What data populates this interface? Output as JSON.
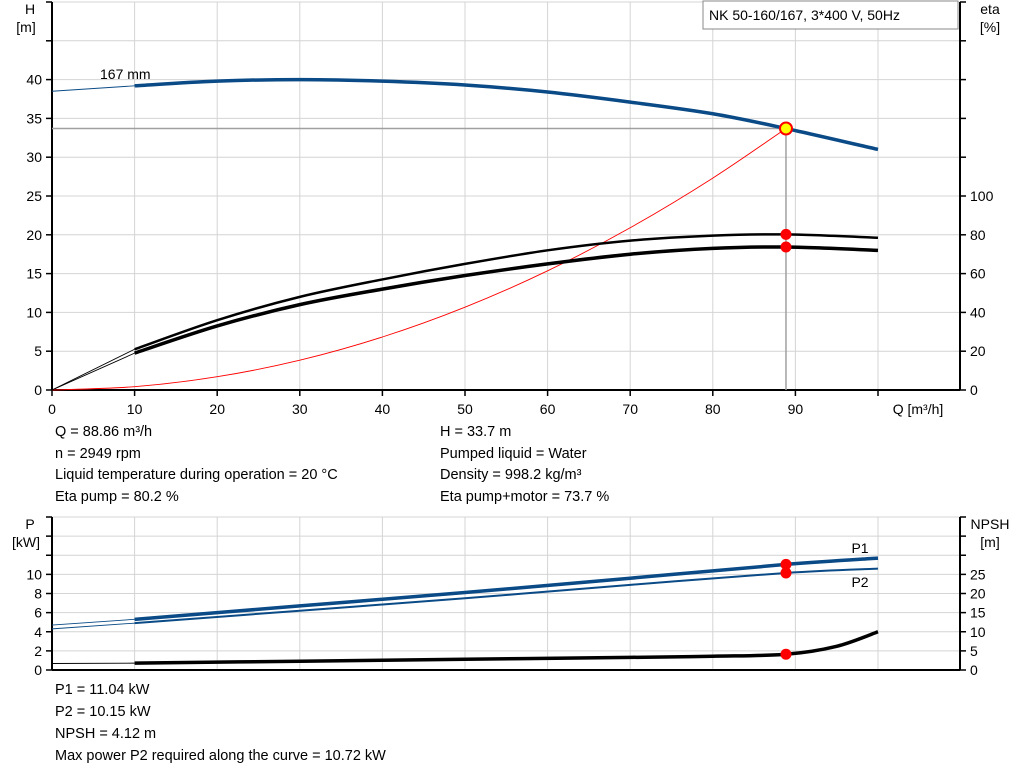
{
  "title": "NK 50-160/167, 3*400 V, 50Hz",
  "colors": {
    "head": "#0a4a86",
    "power": "#0a4a86",
    "eta": "#000000",
    "npsh": "#000000",
    "system": "#ff0000",
    "point": "#ff0000",
    "op_fill": "#ffff00",
    "grid": "#d4d4d4"
  },
  "chart_data": [
    {
      "type": "line",
      "xlabel": "Q [m³/h]",
      "ylabel": "H\n[m]",
      "ylabel_right": "eta\n[%]",
      "xlim": [
        0,
        110
      ],
      "ylim": [
        0,
        50
      ],
      "ylim_right": [
        0,
        200
      ],
      "x_ticks": [
        "0",
        "10",
        "20",
        "30",
        "40",
        "50",
        "60",
        "70",
        "80",
        "90"
      ],
      "y_ticks": [
        "0",
        "5",
        "10",
        "15",
        "20",
        "25",
        "30",
        "35",
        "40"
      ],
      "y_right_ticks": [
        "0",
        "20",
        "40",
        "60",
        "80",
        "100"
      ],
      "grid": true,
      "curve_label": "167 mm",
      "series": [
        {
          "key": "head",
          "axis": "left",
          "thin": [
            [
              0,
              38.5
            ],
            [
              10,
              39.2
            ]
          ],
          "points": [
            [
              10,
              39.2
            ],
            [
              20,
              39.8
            ],
            [
              30,
              40.0
            ],
            [
              40,
              39.8
            ],
            [
              50,
              39.3
            ],
            [
              60,
              38.4
            ],
            [
              70,
              37.1
            ],
            [
              80,
              35.6
            ],
            [
              88.86,
              33.7
            ],
            [
              100,
              31.0
            ]
          ]
        },
        {
          "key": "eta_pump",
          "axis": "right",
          "thin": [
            [
              0,
              0
            ],
            [
              10,
              21
            ]
          ],
          "points": [
            [
              10,
              21
            ],
            [
              20,
              36
            ],
            [
              30,
              48
            ],
            [
              40,
              57
            ],
            [
              50,
              65
            ],
            [
              60,
              72
            ],
            [
              70,
              77
            ],
            [
              80,
              79.6
            ],
            [
              88.86,
              80.2
            ],
            [
              100,
              78.5
            ]
          ]
        },
        {
          "key": "eta_pump_motor",
          "axis": "right",
          "thin": [
            [
              0,
              0
            ],
            [
              10,
              19
            ]
          ],
          "points": [
            [
              10,
              19
            ],
            [
              20,
              33
            ],
            [
              30,
              44
            ],
            [
              40,
              52
            ],
            [
              50,
              59
            ],
            [
              60,
              65
            ],
            [
              70,
              70
            ],
            [
              80,
              73
            ],
            [
              88.86,
              73.7
            ],
            [
              100,
              72
            ]
          ]
        },
        {
          "key": "system",
          "axis": "left",
          "points": [
            [
              0,
              0
            ],
            [
              10,
              0.43
            ],
            [
              20,
              1.71
            ],
            [
              30,
              3.84
            ],
            [
              40,
              6.83
            ],
            [
              50,
              10.67
            ],
            [
              60,
              15.36
            ],
            [
              70,
              20.91
            ],
            [
              80,
              27.31
            ],
            [
              88.86,
              33.7
            ]
          ]
        }
      ],
      "operating_point": {
        "q": 88.86,
        "h": 33.7,
        "eta_pump": 80.2,
        "eta_pump_motor": 73.7
      }
    },
    {
      "type": "line",
      "ylabel": "P\n[kW]",
      "ylabel_right": "NPSH\n[m]",
      "xlim": [
        0,
        110
      ],
      "ylim": [
        0,
        16
      ],
      "ylim_right": [
        0,
        40
      ],
      "y_ticks": [
        "0",
        "2",
        "4",
        "6",
        "8",
        "10"
      ],
      "y_right_ticks": [
        "0",
        "5",
        "10",
        "15",
        "20",
        "25"
      ],
      "grid": true,
      "series": [
        {
          "key": "p1",
          "name": "P1",
          "axis": "left",
          "thin": [
            [
              0,
              4.7
            ],
            [
              10,
              5.3
            ]
          ],
          "points": [
            [
              10,
              5.3
            ],
            [
              30,
              6.7
            ],
            [
              50,
              8.1
            ],
            [
              70,
              9.6
            ],
            [
              88.86,
              11.04
            ],
            [
              100,
              11.7
            ]
          ]
        },
        {
          "key": "p2",
          "name": "P2",
          "axis": "left",
          "thin": [
            [
              0,
              4.3
            ],
            [
              10,
              4.9
            ]
          ],
          "points": [
            [
              10,
              4.9
            ],
            [
              30,
              6.2
            ],
            [
              50,
              7.5
            ],
            [
              70,
              8.9
            ],
            [
              88.86,
              10.15
            ],
            [
              100,
              10.6
            ]
          ]
        },
        {
          "key": "npsh",
          "axis": "right",
          "thin": [
            [
              0,
              1.7
            ],
            [
              10,
              1.8
            ]
          ],
          "points": [
            [
              10,
              1.8
            ],
            [
              30,
              2.3
            ],
            [
              50,
              2.8
            ],
            [
              70,
              3.3
            ],
            [
              80,
              3.6
            ],
            [
              88.86,
              4.12
            ],
            [
              95,
              6.2
            ],
            [
              100,
              10.0
            ]
          ]
        }
      ],
      "operating_point": {
        "p1": 11.04,
        "p2": 10.15,
        "npsh": 4.12
      }
    }
  ],
  "info_top": {
    "left": [
      "Q = 88.86 m³/h",
      "n = 2949 rpm",
      "Liquid temperature during operation = 20 °C",
      "Eta pump = 80.2 %"
    ],
    "right": [
      "H = 33.7 m",
      "Pumped liquid = Water",
      "Density = 998.2 kg/m³",
      "Eta pump+motor = 73.7 %"
    ]
  },
  "info_bottom": [
    "P1 = 11.04 kW",
    "P2 = 10.15 kW",
    "NPSH = 4.12 m",
    "Max power P2 required along the curve = 10.72 kW"
  ]
}
